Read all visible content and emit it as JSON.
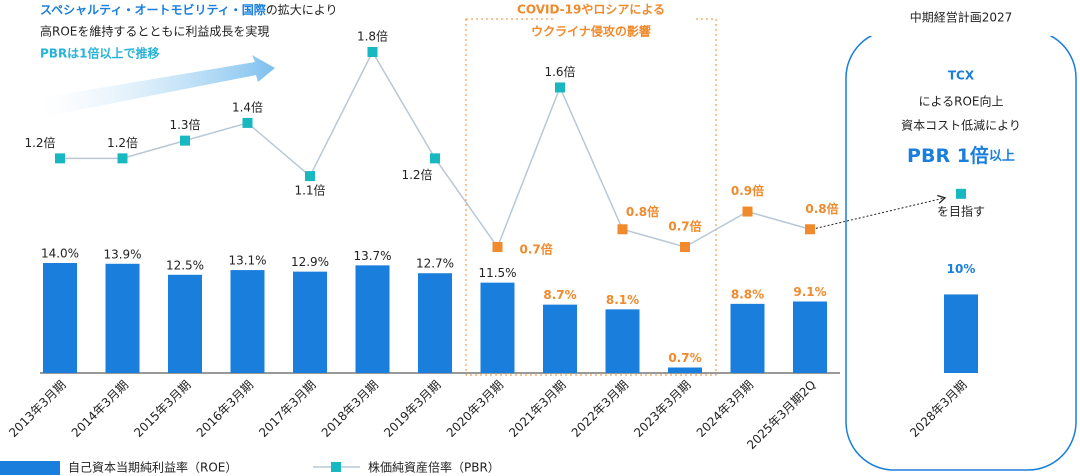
{
  "chart_data": {
    "type": "combo",
    "categories": [
      "2013年3月期",
      "2014年3月期",
      "2015年3月期",
      "2016年3月期",
      "2017年3月期",
      "2018年3月期",
      "2019年3月期",
      "2020年3月期",
      "2021年3月期",
      "2022年3月期",
      "2023年3月期",
      "2024年3月期",
      "2025年3月期2Q",
      "2028年3月期"
    ],
    "series": [
      {
        "name": "自己資本当期純利益率（ROE）",
        "color": "#1a7fdc",
        "values": [
          14.0,
          13.9,
          12.5,
          13.1,
          12.9,
          13.7,
          12.7,
          11.5,
          8.7,
          8.1,
          0.7,
          8.8,
          9.1,
          10
        ],
        "value_labels": [
          "14.0%",
          "13.9%",
          "12.5%",
          "13.1%",
          "12.9%",
          "13.7%",
          "12.7%",
          "11.5%",
          "8.7%",
          "8.1%",
          "0.7%",
          "8.8%",
          "9.1%",
          "10%"
        ],
        "label_colors": [
          "#222",
          "#222",
          "#222",
          "#222",
          "#222",
          "#222",
          "#222",
          "#222",
          "#f08a2c",
          "#f08a2c",
          "#f08a2c",
          "#f08a2c",
          "#f08a2c",
          "#1a7fdc"
        ]
      },
      {
        "name": "株価純資産倍率（PBR）",
        "axis": "y2",
        "color": "#b9c8d6",
        "values": [
          1.2,
          1.2,
          1.3,
          1.4,
          1.1,
          1.8,
          1.2,
          0.7,
          1.6,
          0.8,
          0.7,
          0.9,
          0.8,
          1
        ],
        "value_labels": [
          "1.2倍",
          "1.2倍",
          "1.3倍",
          "1.4倍",
          "1.1倍",
          "1.8倍",
          "1.2倍",
          "0.7倍",
          "1.6倍",
          "0.8倍",
          "0.7倍",
          "0.9倍",
          "0.8倍",
          null
        ],
        "marker_colors": [
          "#17b8c0",
          "#17b8c0",
          "#17b8c0",
          "#17b8c0",
          "#17b8c0",
          "#17b8c0",
          "#17b8c0",
          "#f08a2c",
          "#17b8c0",
          "#f08a2c",
          "#f08a2c",
          "#f08a2c",
          "#f08a2c",
          "#17b8c0"
        ],
        "label_colors": [
          "#222",
          "#222",
          "#222",
          "#222",
          "#222",
          "#222",
          "#222",
          "#f08a2c",
          "#222",
          "#f08a2c",
          "#f08a2c",
          "#f08a2c",
          "#f08a2c",
          "#222"
        ]
      }
    ],
    "ylim": [
      0,
      14
    ],
    "y2lim": [
      0.7,
      1.8
    ],
    "annotations": {
      "growth_1a": "スペシャルティ・オートモビリティ・国際",
      "growth_1b": "の拡大により",
      "growth_2": "高ROEを維持するとともに利益成長を実現",
      "growth_3": "PBRは1倍以上で推移",
      "covid_1": "COVID-19やロシアによる",
      "covid_2": "ウクライナ侵攻の影響",
      "plan_title": "中期経営計画2027",
      "plan_1": "TCX",
      "plan_2": "によるROE向上",
      "plan_3": "資本コスト低減により",
      "plan_4a": "PBR 1倍",
      "plan_4b": "以上",
      "plan_5": "を目指す"
    }
  }
}
